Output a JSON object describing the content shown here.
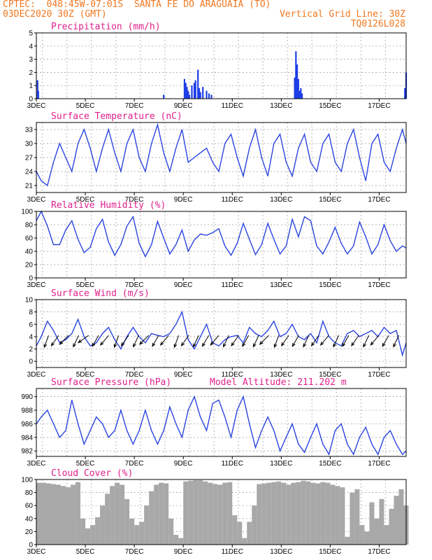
{
  "header": {
    "line1": "CPTEC:  048:45W-07:01S  SANTA FE DO ARAGUAIA (TO)",
    "line2_left": "03DEC2020 30Z (GMT)",
    "line2_right": "Vertical Grid Line: 30Z",
    "line3_right": "TQ0126L028"
  },
  "x_ticks": [
    "3DEC",
    "5DEC",
    "7DEC",
    "9DEC",
    "11DEC",
    "13DEC",
    "15DEC",
    "17DEC"
  ],
  "colors": {
    "header": "#f07820",
    "title": "#e0208c",
    "line": "#2a44e0",
    "bar_precip": "#1f3ee6",
    "bar_cloud": "#a8a8a8",
    "grid": "#9a9a9a",
    "arrow": "#000000"
  },
  "chart_data": [
    {
      "type": "bar",
      "title": "Precipitation (mm/h)",
      "ylim": [
        0,
        5
      ],
      "yticks": [
        0,
        1,
        2,
        3,
        4,
        5
      ],
      "xlim_days": [
        3,
        18.1
      ],
      "series": [
        {
          "name": "",
          "x_days": [
            3.05,
            3.08,
            8.2,
            9.05,
            9.1,
            9.15,
            9.2,
            9.25,
            9.35,
            9.45,
            9.5,
            9.6,
            9.65,
            9.7,
            9.8,
            9.95,
            10.05,
            10.15,
            13.55,
            13.6,
            13.65,
            13.7,
            13.75,
            13.8,
            13.85,
            18.05,
            18.1
          ],
          "values": [
            1.4,
            0.6,
            0.3,
            1.5,
            1.2,
            0.9,
            0.6,
            0.3,
            1.0,
            1.2,
            1.4,
            2.2,
            0.8,
            0.5,
            0.9,
            0.6,
            0.4,
            0.3,
            1.6,
            3.6,
            2.6,
            1.5,
            0.6,
            0.8,
            0.4,
            0.8,
            2.0
          ]
        }
      ]
    },
    {
      "type": "line",
      "title": "Surface Temperature (nC)",
      "ylim": [
        19.5,
        34.5
      ],
      "yticks": [
        21,
        24,
        27,
        30,
        33
      ],
      "xlim_days": [
        3,
        18.1
      ],
      "series": [
        {
          "name": "",
          "x_days": [
            3.0,
            3.2,
            3.45,
            3.7,
            3.95,
            4.2,
            4.45,
            4.7,
            4.95,
            5.2,
            5.45,
            5.7,
            5.95,
            6.2,
            6.45,
            6.7,
            6.95,
            7.2,
            7.45,
            7.7,
            7.95,
            8.2,
            8.45,
            8.7,
            8.95,
            9.2,
            9.45,
            9.7,
            9.95,
            10.2,
            10.45,
            10.7,
            10.95,
            11.2,
            11.45,
            11.7,
            11.95,
            12.2,
            12.45,
            12.7,
            12.95,
            13.2,
            13.45,
            13.7,
            13.95,
            14.2,
            14.45,
            14.7,
            14.95,
            15.2,
            15.45,
            15.7,
            15.95,
            16.2,
            16.45,
            16.7,
            16.95,
            17.2,
            17.45,
            17.7,
            17.95,
            18.1
          ],
          "values": [
            24,
            22,
            21,
            26,
            30,
            27,
            24,
            30,
            33,
            29,
            24,
            29,
            33,
            28,
            24,
            30,
            33,
            27,
            24,
            30,
            34,
            28,
            24,
            29,
            33,
            26,
            27,
            28,
            29,
            26,
            24,
            30,
            32,
            27,
            23,
            29,
            33,
            27,
            23,
            30,
            32,
            26,
            23,
            29,
            32,
            26,
            24,
            30,
            32,
            26,
            24,
            30,
            33,
            27,
            22,
            30,
            32,
            26,
            24,
            29,
            33,
            30
          ]
        }
      ]
    },
    {
      "type": "line",
      "title": "Relative Humidity (%)",
      "ylim": [
        0,
        100
      ],
      "yticks": [
        0,
        20,
        40,
        60,
        80,
        100
      ],
      "xlim_days": [
        3,
        18.1
      ],
      "series": [
        {
          "name": "",
          "x_days": [
            3.0,
            3.2,
            3.45,
            3.7,
            3.95,
            4.2,
            4.45,
            4.7,
            4.95,
            5.2,
            5.45,
            5.7,
            5.95,
            6.2,
            6.45,
            6.7,
            6.95,
            7.2,
            7.45,
            7.7,
            7.95,
            8.2,
            8.45,
            8.7,
            8.95,
            9.2,
            9.45,
            9.7,
            9.95,
            10.2,
            10.45,
            10.7,
            10.95,
            11.2,
            11.45,
            11.7,
            11.95,
            12.2,
            12.45,
            12.7,
            12.95,
            13.2,
            13.45,
            13.7,
            13.95,
            14.2,
            14.45,
            14.7,
            14.95,
            15.2,
            15.45,
            15.7,
            15.95,
            16.2,
            16.45,
            16.7,
            16.95,
            17.2,
            17.45,
            17.7,
            17.95,
            18.1
          ],
          "values": [
            86,
            100,
            78,
            50,
            50,
            72,
            86,
            58,
            38,
            46,
            74,
            88,
            54,
            34,
            50,
            78,
            92,
            52,
            32,
            50,
            85,
            60,
            36,
            50,
            72,
            40,
            57,
            66,
            64,
            68,
            74,
            48,
            34,
            52,
            82,
            58,
            35,
            50,
            82,
            58,
            36,
            48,
            88,
            62,
            92,
            86,
            48,
            36,
            54,
            76,
            52,
            36,
            48,
            84,
            62,
            36,
            50,
            80,
            56,
            40,
            48,
            45
          ]
        }
      ]
    },
    {
      "type": "line",
      "title": "Surface Wind (m/s)",
      "ylim": [
        -1,
        10
      ],
      "yticks": [
        0,
        2,
        4,
        6,
        8,
        10
      ],
      "xlim_days": [
        3,
        18.1
      ],
      "series": [
        {
          "name": "",
          "x_days": [
            3.0,
            3.2,
            3.45,
            3.7,
            3.95,
            4.2,
            4.45,
            4.7,
            4.95,
            5.2,
            5.45,
            5.7,
            5.95,
            6.2,
            6.45,
            6.7,
            6.95,
            7.2,
            7.45,
            7.7,
            7.95,
            8.2,
            8.45,
            8.7,
            8.95,
            9.2,
            9.45,
            9.7,
            9.95,
            10.2,
            10.45,
            10.7,
            10.95,
            11.2,
            11.45,
            11.7,
            11.95,
            12.2,
            12.45,
            12.7,
            12.95,
            13.2,
            13.45,
            13.7,
            13.95,
            14.2,
            14.45,
            14.7,
            14.95,
            15.2,
            15.45,
            15.7,
            15.95,
            16.2,
            16.45,
            16.7,
            16.95,
            17.2,
            17.45,
            17.7,
            17.95,
            18.1
          ],
          "values": [
            2.5,
            4,
            6.5,
            5,
            3,
            3.5,
            4.5,
            6.8,
            4,
            2.5,
            3,
            4.5,
            5.5,
            3.5,
            2,
            4,
            5.5,
            4,
            3,
            4.5,
            4.2,
            4,
            4.5,
            6,
            8,
            3.5,
            2,
            4,
            6,
            3,
            2.5,
            3.5,
            4,
            4.2,
            3,
            5.5,
            4.5,
            4,
            5,
            6.5,
            4,
            4.5,
            6,
            4,
            3.5,
            4.5,
            3,
            6.5,
            4,
            3,
            2.5,
            4.5,
            5,
            4,
            4.5,
            5,
            4,
            5.5,
            4.5,
            5,
            1,
            3
          ]
        }
      ],
      "wind_barb_dirs_deg": [
        200,
        215,
        225,
        205,
        235,
        210,
        220,
        200,
        215,
        205,
        225,
        210,
        220,
        200,
        215,
        205,
        210,
        220,
        205,
        215,
        210,
        205,
        225,
        200,
        215,
        210,
        205,
        215,
        220,
        205,
        210,
        215,
        205,
        220,
        210,
        205
      ]
    },
    {
      "type": "line",
      "title": "Surface Pressure (hPa)",
      "annotation": "Model Altitude: 211.202 m",
      "ylim": [
        981.2,
        991.2
      ],
      "yticks": [
        982,
        984,
        986,
        988,
        990
      ],
      "xlim_days": [
        3,
        18.1
      ],
      "series": [
        {
          "name": "",
          "x_days": [
            3.0,
            3.2,
            3.45,
            3.7,
            3.95,
            4.2,
            4.45,
            4.7,
            4.95,
            5.2,
            5.45,
            5.7,
            5.95,
            6.2,
            6.45,
            6.7,
            6.95,
            7.2,
            7.45,
            7.7,
            7.95,
            8.2,
            8.45,
            8.7,
            8.95,
            9.2,
            9.45,
            9.7,
            9.95,
            10.2,
            10.45,
            10.7,
            10.95,
            11.2,
            11.45,
            11.7,
            11.95,
            12.2,
            12.45,
            12.7,
            12.95,
            13.2,
            13.45,
            13.7,
            13.95,
            14.2,
            14.45,
            14.7,
            14.95,
            15.2,
            15.45,
            15.7,
            15.95,
            16.2,
            16.45,
            16.7,
            16.95,
            17.2,
            17.45,
            17.7,
            17.95,
            18.1
          ],
          "values": [
            986,
            987,
            988,
            986,
            984,
            985,
            989.5,
            986,
            983,
            985,
            987,
            986,
            984,
            985,
            988,
            985,
            983,
            985,
            988,
            985,
            983,
            985,
            988.5,
            986,
            984,
            988,
            990,
            987,
            985,
            989,
            989.5,
            987,
            984,
            988,
            990,
            986,
            982.5,
            985,
            987,
            985,
            982,
            984,
            986,
            983,
            981.8,
            984,
            986,
            983,
            981.5,
            985,
            986,
            983,
            981.5,
            984,
            985.5,
            983,
            981.5,
            984,
            985,
            983,
            981.5,
            982
          ]
        }
      ]
    },
    {
      "type": "bar",
      "title": "Cloud Cover (%)",
      "ylim": [
        0,
        100
      ],
      "yticks": [
        0,
        20,
        40,
        60,
        80,
        100
      ],
      "xlim_days": [
        3,
        18.1
      ],
      "series": [
        {
          "name": "",
          "x_days": [
            3.0,
            3.2,
            3.4,
            3.6,
            3.8,
            4.0,
            4.2,
            4.4,
            4.6,
            4.8,
            5.0,
            5.2,
            5.4,
            5.6,
            5.8,
            6.0,
            6.2,
            6.4,
            6.6,
            6.8,
            7.0,
            7.2,
            7.4,
            7.6,
            7.8,
            8.0,
            8.2,
            8.4,
            8.6,
            8.8,
            9.0,
            9.2,
            9.4,
            9.6,
            9.8,
            10.0,
            10.2,
            10.4,
            10.6,
            10.8,
            11.0,
            11.2,
            11.4,
            11.6,
            11.8,
            12.0,
            12.2,
            12.4,
            12.6,
            12.8,
            13.0,
            13.2,
            13.4,
            13.6,
            13.8,
            14.0,
            14.2,
            14.4,
            14.6,
            14.8,
            15.0,
            15.2,
            15.4,
            15.6,
            15.8,
            16.0,
            16.2,
            16.4,
            16.6,
            16.8,
            17.0,
            17.2,
            17.4,
            17.6,
            17.8,
            18.0
          ],
          "values": [
            95,
            95,
            94,
            93,
            92,
            90,
            88,
            92,
            96,
            40,
            25,
            30,
            42,
            60,
            78,
            90,
            95,
            92,
            70,
            40,
            30,
            35,
            60,
            82,
            92,
            95,
            94,
            40,
            15,
            10,
            97,
            98,
            99,
            99,
            97,
            95,
            93,
            92,
            95,
            96,
            45,
            35,
            10,
            35,
            60,
            93,
            94,
            95,
            96,
            97,
            95,
            92,
            95,
            96,
            98,
            97,
            95,
            94,
            96,
            95,
            92,
            90,
            88,
            12,
            80,
            85,
            30,
            20,
            65,
            40,
            70,
            30,
            55,
            75,
            85,
            60
          ]
        }
      ]
    }
  ]
}
